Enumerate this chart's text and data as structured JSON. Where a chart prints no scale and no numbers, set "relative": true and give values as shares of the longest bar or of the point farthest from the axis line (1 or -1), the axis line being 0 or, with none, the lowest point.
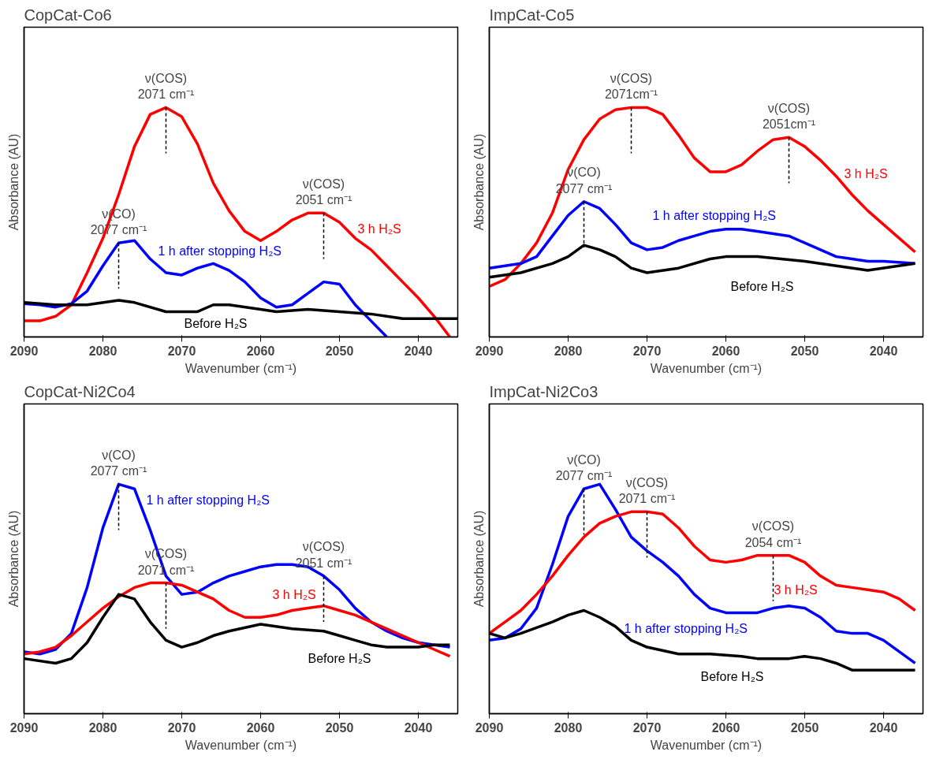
{
  "chart_data": [
    {
      "type": "line",
      "title": "CopCat-Co6",
      "xlabel": "Wavenumber (cm⁻¹)",
      "ylabel": "Absorbance (AU)",
      "relative": true,
      "xlim": [
        2090,
        2035
      ],
      "xticks": [
        2090,
        2080,
        2070,
        2060,
        2050,
        2040
      ],
      "tick_labels": "x",
      "grid": false,
      "marker": "none",
      "line_style": "solid",
      "series": [
        {
          "name": "3 h H₂S",
          "color": "#ff0000",
          "x": [
            2090,
            2088,
            2086,
            2084,
            2082,
            2080,
            2078,
            2076,
            2074,
            2072,
            2070,
            2068,
            2066,
            2064,
            2062,
            2060,
            2058,
            2056,
            2054,
            2052,
            2050,
            2048,
            2046,
            2044,
            2042,
            2040,
            2038,
            2036
          ],
          "values": [
            0.07,
            0.07,
            0.09,
            0.14,
            0.28,
            0.43,
            0.62,
            0.83,
            0.97,
            1,
            0.96,
            0.84,
            0.67,
            0.55,
            0.46,
            0.42,
            0.46,
            0.51,
            0.54,
            0.54,
            0.5,
            0.43,
            0.38,
            0.31,
            0.24,
            0.17,
            0.09,
            0
          ]
        },
        {
          "name": "1 h after stopping H₂S",
          "color": "#0000ff",
          "x": [
            2090,
            2088,
            2086,
            2084,
            2082,
            2080,
            2078,
            2076,
            2074,
            2072,
            2070,
            2068,
            2066,
            2064,
            2062,
            2060,
            2058,
            2056,
            2054,
            2052,
            2050,
            2048,
            2046,
            2044
          ],
          "values": [
            0.145,
            0.14,
            0.13,
            0.145,
            0.2,
            0.31,
            0.41,
            0.42,
            0.34,
            0.28,
            0.27,
            0.3,
            0.32,
            0.29,
            0.24,
            0.17,
            0.13,
            0.14,
            0.19,
            0.24,
            0.23,
            0.14,
            0.07,
            0
          ]
        },
        {
          "name": "Before H₂S",
          "color": "#000000",
          "x": [
            2090,
            2086,
            2082,
            2078,
            2076,
            2072,
            2068,
            2066,
            2064,
            2060,
            2058,
            2054,
            2050,
            2046,
            2042,
            2038,
            2035
          ],
          "values": [
            0.15,
            0.14,
            0.14,
            0.16,
            0.15,
            0.11,
            0.11,
            0.14,
            0.14,
            0.12,
            0.11,
            0.12,
            0.11,
            0.1,
            0.08,
            0.08,
            0.08
          ]
        }
      ],
      "annotations": [
        {
          "text": "ν(COS)\n2071 cm⁻¹",
          "x": 2072,
          "y": 1
        },
        {
          "text": "ν(CO)\n2077 cm⁻¹",
          "x": 2078,
          "y": 0.41
        },
        {
          "text": "ν(COS)\n2051 cm⁻¹",
          "x": 2052,
          "y": 0.54
        }
      ]
    },
    {
      "type": "line",
      "title": "ImpCat-Co5",
      "xlabel": "Wavenumber (cm⁻¹)",
      "ylabel": "Absorbance (AU)",
      "relative": true,
      "xlim": [
        2090,
        2035
      ],
      "xticks": [
        2090,
        2080,
        2070,
        2060,
        2050,
        2040
      ],
      "tick_labels": "x",
      "grid": false,
      "marker": "none",
      "line_style": "solid",
      "series": [
        {
          "name": "3 h H₂S",
          "color": "#ff0000",
          "x": [
            2090,
            2088,
            2086,
            2084,
            2082,
            2080,
            2078,
            2076,
            2074,
            2072,
            2070,
            2068,
            2066,
            2064,
            2062,
            2060,
            2058,
            2056,
            2054,
            2052,
            2050,
            2048,
            2046,
            2044,
            2042,
            2040,
            2038,
            2036
          ],
          "values": [
            0.22,
            0.25,
            0.32,
            0.41,
            0.54,
            0.73,
            0.86,
            0.95,
            0.99,
            1,
            1,
            0.97,
            0.88,
            0.78,
            0.72,
            0.72,
            0.75,
            0.81,
            0.86,
            0.87,
            0.83,
            0.77,
            0.7,
            0.62,
            0.55,
            0.49,
            0.43,
            0.37
          ]
        },
        {
          "name": "1 h after stopping H₂S",
          "color": "#0000ff",
          "x": [
            2090,
            2088,
            2086,
            2084,
            2082,
            2080,
            2078,
            2076,
            2074,
            2072,
            2070,
            2068,
            2066,
            2064,
            2062,
            2060,
            2058,
            2056,
            2054,
            2052,
            2050,
            2048,
            2046,
            2044,
            2042,
            2040,
            2036
          ],
          "values": [
            0.3,
            0.31,
            0.32,
            0.35,
            0.44,
            0.53,
            0.59,
            0.56,
            0.49,
            0.41,
            0.38,
            0.39,
            0.42,
            0.44,
            0.46,
            0.47,
            0.47,
            0.46,
            0.45,
            0.44,
            0.41,
            0.38,
            0.35,
            0.34,
            0.33,
            0.33,
            0.32
          ]
        },
        {
          "name": "Before H₂S",
          "color": "#000000",
          "x": [
            2090,
            2086,
            2082,
            2080,
            2078,
            2076,
            2074,
            2072,
            2070,
            2066,
            2062,
            2060,
            2056,
            2050,
            2046,
            2042,
            2036
          ],
          "values": [
            0.26,
            0.28,
            0.32,
            0.35,
            0.4,
            0.38,
            0.35,
            0.3,
            0.28,
            0.3,
            0.34,
            0.35,
            0.35,
            0.33,
            0.31,
            0.29,
            0.32
          ]
        }
      ],
      "annotations": [
        {
          "text": "ν(COS)\n2071cm⁻¹",
          "x": 2072,
          "y": 1
        },
        {
          "text": "ν(COS)\n2051cm⁻¹",
          "x": 2052,
          "y": 0.87
        },
        {
          "text": "ν(CO)\n2077 cm⁻¹",
          "x": 2078,
          "y": 0.59
        }
      ]
    },
    {
      "type": "line",
      "title": "CopCat-Ni2Co4",
      "xlabel": "Wavenumber (cm⁻¹)",
      "ylabel": "Absorbance (AU)",
      "relative": true,
      "xlim": [
        2090,
        2035
      ],
      "xticks": [
        2090,
        2080,
        2070,
        2060,
        2050,
        2040
      ],
      "tick_labels": "x",
      "grid": false,
      "marker": "none",
      "line_style": "solid",
      "series": [
        {
          "name": "1 h after stopping H₂S",
          "color": "#0000ff",
          "x": [
            2090,
            2088,
            2086,
            2084,
            2082,
            2080,
            2078,
            2076,
            2074,
            2072,
            2070,
            2068,
            2066,
            2064,
            2062,
            2060,
            2058,
            2056,
            2054,
            2052,
            2050,
            2048,
            2046,
            2044,
            2042,
            2040,
            2038,
            2036
          ],
          "values": [
            0.27,
            0.26,
            0.28,
            0.35,
            0.55,
            0.81,
            1,
            0.98,
            0.8,
            0.6,
            0.52,
            0.53,
            0.57,
            0.6,
            0.62,
            0.64,
            0.65,
            0.65,
            0.64,
            0.6,
            0.54,
            0.46,
            0.4,
            0.36,
            0.33,
            0.31,
            0.3,
            0.29
          ]
        },
        {
          "name": "3 h H₂S",
          "color": "#ff0000",
          "x": [
            2090,
            2088,
            2086,
            2084,
            2082,
            2080,
            2078,
            2076,
            2074,
            2072,
            2070,
            2068,
            2066,
            2064,
            2062,
            2060,
            2058,
            2056,
            2054,
            2052,
            2050,
            2048,
            2046,
            2044,
            2042,
            2040,
            2038,
            2036
          ],
          "values": [
            0.26,
            0.27,
            0.29,
            0.34,
            0.4,
            0.46,
            0.51,
            0.55,
            0.57,
            0.57,
            0.56,
            0.53,
            0.5,
            0.45,
            0.42,
            0.42,
            0.43,
            0.45,
            0.46,
            0.47,
            0.45,
            0.43,
            0.4,
            0.37,
            0.34,
            0.31,
            0.28,
            0.25
          ]
        },
        {
          "name": "Before H₂S",
          "color": "#000000",
          "x": [
            2090,
            2086,
            2084,
            2082,
            2080,
            2078,
            2076,
            2074,
            2072,
            2070,
            2068,
            2066,
            2064,
            2060,
            2056,
            2052,
            2050,
            2048,
            2046,
            2044,
            2040,
            2038,
            2036
          ],
          "values": [
            0.24,
            0.22,
            0.24,
            0.31,
            0.42,
            0.52,
            0.5,
            0.4,
            0.32,
            0.29,
            0.31,
            0.34,
            0.36,
            0.39,
            0.37,
            0.36,
            0.34,
            0.32,
            0.3,
            0.29,
            0.29,
            0.3,
            0.3
          ]
        }
      ],
      "annotations": [
        {
          "text": "ν(CO)\n2077 cm⁻¹",
          "x": 2078,
          "y": 1
        },
        {
          "text": "ν(COS)\n2071 cm⁻¹",
          "x": 2072,
          "y": 0.57
        },
        {
          "text": "ν(COS)\n2051 cm⁻¹",
          "x": 2052,
          "y": 0.6
        }
      ]
    },
    {
      "type": "line",
      "title": "ImpCat-Ni2Co3",
      "xlabel": "Wavenumber (cm⁻¹)",
      "ylabel": "Absorbance (AU)",
      "relative": true,
      "xlim": [
        2090,
        2035
      ],
      "xticks": [
        2090,
        2080,
        2070,
        2060,
        2050,
        2040
      ],
      "tick_labels": "x",
      "grid": false,
      "marker": "none",
      "line_style": "solid",
      "series": [
        {
          "name": "1 h after stopping H₂S",
          "color": "#0000ff",
          "x": [
            2090,
            2088,
            2086,
            2084,
            2082,
            2080,
            2078,
            2076,
            2074,
            2072,
            2070,
            2068,
            2066,
            2064,
            2062,
            2060,
            2058,
            2056,
            2054,
            2052,
            2050,
            2048,
            2046,
            2044,
            2042,
            2040,
            2038,
            2036
          ],
          "values": [
            0.32,
            0.33,
            0.37,
            0.46,
            0.65,
            0.86,
            0.98,
            1,
            0.89,
            0.77,
            0.71,
            0.66,
            0.6,
            0.52,
            0.46,
            0.44,
            0.44,
            0.44,
            0.46,
            0.47,
            0.46,
            0.42,
            0.36,
            0.35,
            0.35,
            0.32,
            0.27,
            0.22
          ]
        },
        {
          "name": "3 h H₂S",
          "color": "#ff0000",
          "x": [
            2090,
            2088,
            2086,
            2084,
            2082,
            2080,
            2078,
            2076,
            2074,
            2072,
            2070,
            2068,
            2066,
            2064,
            2062,
            2060,
            2058,
            2056,
            2054,
            2052,
            2050,
            2048,
            2046,
            2044,
            2042,
            2040,
            2038,
            2036
          ],
          "values": [
            0.35,
            0.4,
            0.45,
            0.52,
            0.6,
            0.69,
            0.77,
            0.83,
            0.86,
            0.88,
            0.88,
            0.87,
            0.81,
            0.73,
            0.67,
            0.66,
            0.67,
            0.69,
            0.69,
            0.69,
            0.66,
            0.6,
            0.56,
            0.55,
            0.54,
            0.53,
            0.5,
            0.45
          ]
        },
        {
          "name": "Before H₂S",
          "color": "#000000",
          "x": [
            2090,
            2088,
            2086,
            2082,
            2080,
            2078,
            2076,
            2074,
            2072,
            2070,
            2066,
            2062,
            2058,
            2056,
            2052,
            2050,
            2048,
            2046,
            2044,
            2040,
            2036
          ],
          "values": [
            0.35,
            0.33,
            0.35,
            0.4,
            0.43,
            0.45,
            0.42,
            0.38,
            0.32,
            0.29,
            0.26,
            0.26,
            0.25,
            0.24,
            0.24,
            0.25,
            0.24,
            0.22,
            0.19,
            0.19,
            0.19
          ]
        }
      ],
      "annotations": [
        {
          "text": "ν(CO)\n2077 cm⁻¹",
          "x": 2078,
          "y": 0.98
        },
        {
          "text": "ν(COS)\n2071 cm⁻¹",
          "x": 2070,
          "y": 0.88
        },
        {
          "text": "ν(COS)\n2054 cm⁻¹",
          "x": 2054,
          "y": 0.69
        }
      ]
    }
  ]
}
